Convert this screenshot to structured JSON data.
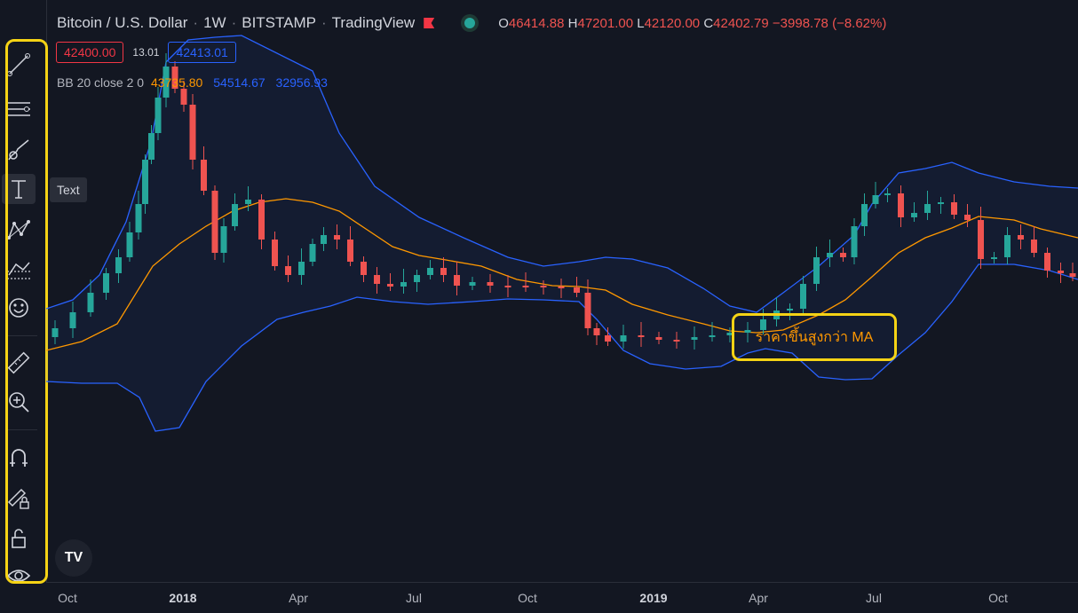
{
  "header": {
    "symbol": "Bitcoin / U.S. Dollar",
    "interval": "1W",
    "exchange": "BITSTAMP",
    "source": "TradingView",
    "separator": "·",
    "ohlc": {
      "o_label": "O",
      "o": "46414.88",
      "h_label": "H",
      "h": "47201.00",
      "l_label": "L",
      "l": "42120.00",
      "c_label": "C",
      "c": "42402.79",
      "change": "−3998.78 (−8.62%)"
    }
  },
  "price_boxes": {
    "bid": "42400.00",
    "spread": "13.01",
    "ask": "42413.01"
  },
  "indicator": {
    "label": "BB 20 close 2 0",
    "basis": "43735.80",
    "upper": "54514.67",
    "lower": "32956.93"
  },
  "toolbar": {
    "tools": [
      {
        "name": "trend-line-icon"
      },
      {
        "name": "horizontal-lines-icon"
      },
      {
        "name": "brush-icon"
      },
      {
        "name": "text-icon"
      },
      {
        "name": "pattern-icon"
      },
      {
        "name": "prediction-icon"
      },
      {
        "name": "emoji-icon"
      },
      {
        "name": "ruler-icon"
      },
      {
        "name": "zoom-in-icon"
      },
      {
        "name": "magnet-icon"
      },
      {
        "name": "lock-drawing-icon"
      },
      {
        "name": "lock-icon"
      },
      {
        "name": "eye-icon"
      }
    ],
    "active_tooltip": "Text"
  },
  "annotation": {
    "text": "ราคาขึ้นสูงกว่า MA"
  },
  "logo": {
    "text": "TV"
  },
  "time_axis": [
    {
      "label": "Oct",
      "bold": false
    },
    {
      "label": "2018",
      "bold": true
    },
    {
      "label": "Apr",
      "bold": false
    },
    {
      "label": "Jul",
      "bold": false
    },
    {
      "label": "Oct",
      "bold": false
    },
    {
      "label": "2019",
      "bold": true
    },
    {
      "label": "Apr",
      "bold": false
    },
    {
      "label": "Jul",
      "bold": false
    },
    {
      "label": "Oct",
      "bold": false
    }
  ],
  "colors": {
    "up": "#26a69a",
    "down": "#ef5350",
    "bb_upper_lower": "#2962ff",
    "bb_basis": "#ff9800",
    "highlight": "#f5d315"
  }
}
